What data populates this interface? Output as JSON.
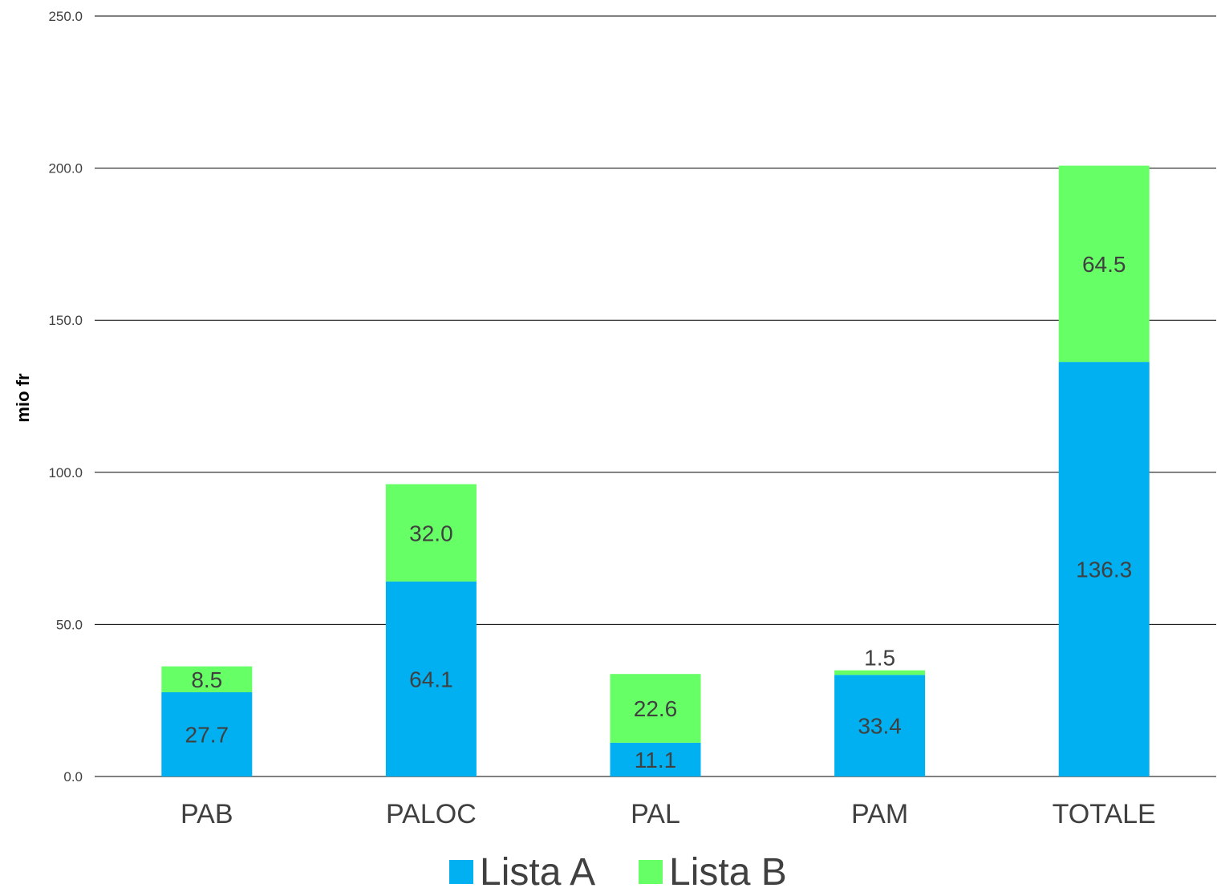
{
  "chart_data": {
    "type": "bar",
    "stacked": true,
    "title": "",
    "xlabel": "",
    "ylabel": "mio fr",
    "ylim": [
      0,
      250
    ],
    "yticks": [
      "0.0",
      "50.0",
      "100.0",
      "150.0",
      "200.0",
      "250.0"
    ],
    "ytick_values": [
      0,
      50,
      100,
      150,
      200,
      250
    ],
    "grid": true,
    "legend_position": "bottom",
    "categories": [
      "PAB",
      "PALOC",
      "PAL",
      "PAM",
      "TOTALE"
    ],
    "series": [
      {
        "name": "Lista A",
        "color": "#00b0f0",
        "values": [
          27.7,
          64.1,
          11.1,
          33.4,
          136.3
        ],
        "labels": [
          "27.7",
          "64.1",
          "11.1",
          "33.4",
          "136.3"
        ]
      },
      {
        "name": "Lista B",
        "color": "#66ff66",
        "values": [
          8.5,
          32.0,
          22.6,
          1.5,
          64.5
        ],
        "labels": [
          "8.5",
          "32.0",
          "22.6",
          "1.5",
          "64.5"
        ]
      }
    ]
  }
}
